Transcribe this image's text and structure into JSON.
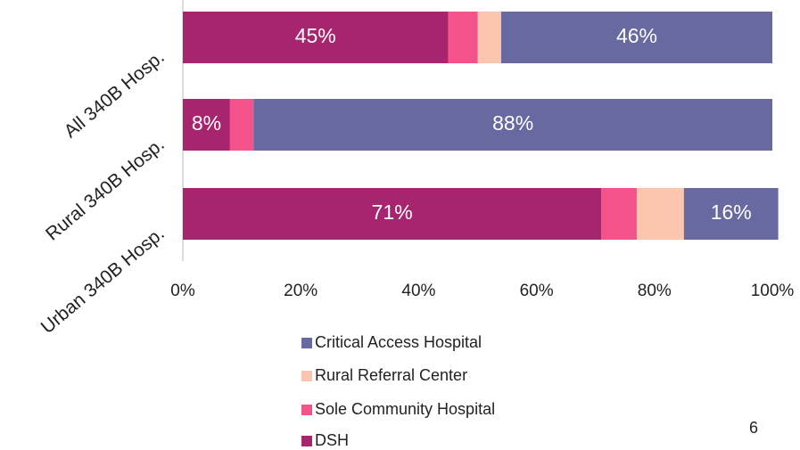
{
  "chart_data": {
    "type": "stacked-bar-horizontal",
    "categories": [
      "All 340B Hosp.",
      "Rural 340B Hosp.",
      "Urban 340B Hosp."
    ],
    "series": [
      {
        "name": "DSH",
        "color": "#a6256e",
        "values": [
          45,
          8,
          71
        ],
        "value_labels": [
          "45%",
          "8%",
          "71%"
        ]
      },
      {
        "name": "Sole Community Hospital",
        "color": "#f4528a",
        "values": [
          5,
          4,
          6
        ],
        "value_labels": [
          null,
          null,
          null
        ]
      },
      {
        "name": "Rural Referral Center",
        "color": "#fcc5b0",
        "values": [
          4,
          0,
          8
        ],
        "value_labels": [
          null,
          null,
          null
        ]
      },
      {
        "name": "Critical Access Hospital",
        "color": "#6869a0",
        "values": [
          46,
          88,
          16
        ],
        "value_labels": [
          "46%",
          "88%",
          "16%"
        ]
      }
    ],
    "xlim": [
      0,
      100
    ],
    "xticks": [
      {
        "value": 0,
        "label": "0%"
      },
      {
        "value": 20,
        "label": "20%"
      },
      {
        "value": 40,
        "label": "40%"
      },
      {
        "value": 60,
        "label": "60%"
      },
      {
        "value": 80,
        "label": "80%"
      },
      {
        "value": 100,
        "label": "100%"
      }
    ],
    "page_number": "6"
  }
}
